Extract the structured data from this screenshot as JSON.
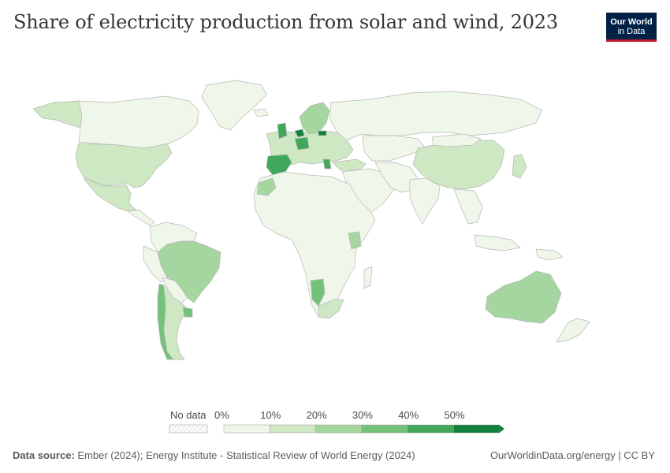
{
  "header": {
    "title": "Share of electricity production from solar and wind, 2023",
    "logo_line1": "Our World",
    "logo_line2": "in Data"
  },
  "legend": {
    "no_data_label": "No data",
    "tick_labels": [
      "0%",
      "10%",
      "20%",
      "30%",
      "40%",
      "50%"
    ],
    "bin_colors": [
      "#eef7e9",
      "#cde8c2",
      "#a5d6a0",
      "#74c27a",
      "#41a75a",
      "#13803c"
    ]
  },
  "colors": {
    "land_default": "#eef7e9",
    "border": "#b8b8b8",
    "ocean": "#ffffff"
  },
  "footer": {
    "source_label": "Data source:",
    "source_text": "Ember (2024); Energy Institute - Statistical Review of World Energy (2024)",
    "right_text": "OurWorldinData.org/energy | CC BY"
  }
}
